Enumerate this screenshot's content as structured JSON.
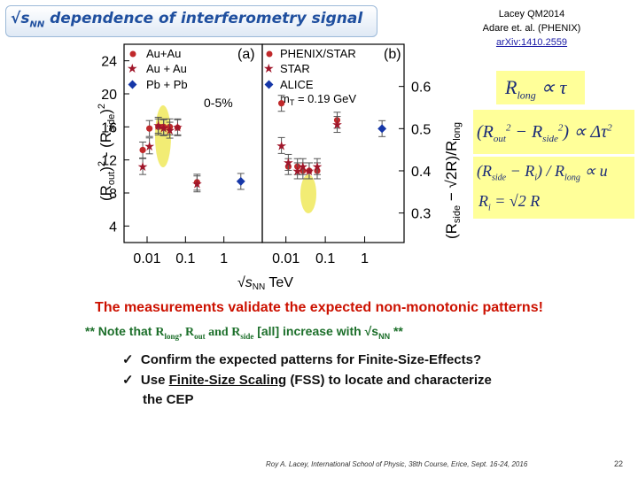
{
  "slide": {
    "title_suffix": "dependence of interferometry  signal",
    "ref_line1": "Lacey QM2014",
    "ref_line2": "Adare et. al. (PHENIX)",
    "ref_link": "arXiv:1410.2559",
    "validate_text": "The measurements validate the expected non-monotonic patterns!",
    "note_prefix": "** Note that",
    "note_suffix": "[all] increase with",
    "bullet1": "Confirm the expected patterns for Finite-Size-Effects?",
    "bullet2_pre": "Use",
    "bullet2_link": "Finite-Size Scaling",
    "bullet2_post": "(FSS) to locate and characterize",
    "bullet2_line2": "the CEP",
    "footer": "Roy A.  Lacey, International School of Physic, 38th Course, Erice, Sept. 16-24, 2016",
    "page_number": "22",
    "check_mark": "✓"
  },
  "chart_data": [
    {
      "type": "scatter",
      "panel_label": "(a)",
      "ylabel": "(R_out)^2 - (R_side)^2",
      "xlabel": "√s_NN  TeV",
      "x_scale": "log",
      "yticks": [
        "4",
        "8",
        "12",
        "16",
        "20",
        "24"
      ],
      "xticks": [
        "0.01",
        "0.1",
        "1"
      ],
      "annotation": "0-5%",
      "ylim": [
        2,
        26
      ],
      "series": [
        {
          "name": "Au+Au",
          "marker": "circle",
          "color": "#c0292b",
          "points": [
            [
              0.0077,
              13.2
            ],
            [
              0.0115,
              15.8
            ],
            [
              0.0196,
              16.0
            ],
            [
              0.027,
              16.0
            ],
            [
              0.039,
              16.0
            ],
            [
              0.0624,
              15.9
            ],
            [
              0.2,
              9.3
            ]
          ]
        },
        {
          "name": "Au + Au",
          "marker": "star",
          "color": "#a0162a",
          "points": [
            [
              0.0077,
              11.2
            ],
            [
              0.0115,
              13.7
            ],
            [
              0.0196,
              16.2
            ],
            [
              0.027,
              15.9
            ],
            [
              0.039,
              15.6
            ],
            [
              0.0624,
              16.0
            ],
            [
              0.2,
              9.1
            ]
          ]
        },
        {
          "name": "Pb + Pb",
          "marker": "diamond",
          "color": "#1637a8",
          "points": [
            [
              2.76,
              9.4
            ]
          ]
        }
      ],
      "highlight": {
        "x": 0.03,
        "y": 16.0
      }
    },
    {
      "type": "scatter",
      "panel_label": "(b)",
      "ylabel": "(R_side − √2R)/R_long",
      "xticks": [
        "0.01",
        "0.1",
        "1"
      ],
      "yticks": [
        "0.3",
        "0.4",
        "0.5",
        "0.6"
      ],
      "x_scale": "log",
      "ylim": [
        0.23,
        0.7
      ],
      "legend": [
        "PHENIX/STAR",
        "STAR",
        "ALICE"
      ],
      "legend_extra": "m_T = 0.19 GeV",
      "series": [
        {
          "name": "PHENIX/STAR",
          "marker": "circle",
          "color": "#c0292b",
          "points": [
            [
              0.0077,
              0.56
            ],
            [
              0.0115,
              0.41
            ],
            [
              0.0196,
              0.41
            ],
            [
              0.027,
              0.4
            ],
            [
              0.039,
              0.4
            ],
            [
              0.0624,
              0.4
            ],
            [
              0.2,
              0.52
            ]
          ]
        },
        {
          "name": "STAR",
          "marker": "star",
          "color": "#a0162a",
          "points": [
            [
              0.0077,
              0.46
            ],
            [
              0.0115,
              0.42
            ],
            [
              0.0196,
              0.4
            ],
            [
              0.027,
              0.41
            ],
            [
              0.039,
              0.4
            ],
            [
              0.0624,
              0.41
            ],
            [
              0.2,
              0.51
            ]
          ]
        },
        {
          "name": "ALICE",
          "marker": "diamond",
          "color": "#1637a8",
          "points": [
            [
              2.76,
              0.5
            ]
          ]
        }
      ],
      "highlight": {
        "x": 0.03,
        "y": 0.405
      }
    }
  ],
  "formulas": {
    "f1": "R_long ∝ τ",
    "f2": "(R²_out − R²_side) ∝ Δτ²",
    "f3a": "(R_side − R_i) / R_long ∝ u",
    "f3b": "R_i = √2 R"
  }
}
